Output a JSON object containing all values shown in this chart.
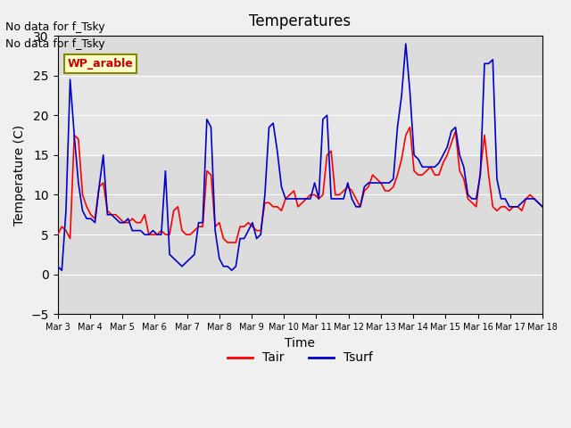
{
  "title": "Temperatures",
  "xlabel": "Time",
  "ylabel": "Temperature (C)",
  "ylim": [
    -5,
    30
  ],
  "background_color": "#e8e8e8",
  "plot_bg_color": "#dcdcdc",
  "annotation_text1": "No data for f_Tsky",
  "annotation_text2": "No data for f_Tsky",
  "wp_label": "WP_arable",
  "legend_labels": [
    "Tair",
    "Tsurf"
  ],
  "legend_colors": [
    "#ff0000",
    "#0000cc"
  ],
  "xtick_labels": [
    "Mar 3",
    "Mar 4",
    "Mar 5",
    "Mar 6",
    "Mar 7",
    "Mar 8",
    "Mar 9",
    "Mar 10",
    "Mar 11",
    "Mar 12",
    "Mar 13",
    "Mar 14",
    "Mar 15",
    "Mar 16",
    "Mar 17",
    "Mar 18"
  ],
  "tair": [
    5.0,
    6.0,
    5.5,
    4.5,
    17.5,
    17.0,
    10.0,
    8.5,
    7.5,
    7.0,
    11.0,
    11.5,
    8.0,
    7.5,
    7.5,
    7.0,
    6.5,
    6.5,
    7.0,
    6.5,
    6.5,
    7.5,
    5.0,
    5.0,
    5.0,
    5.5,
    5.0,
    5.0,
    8.0,
    8.5,
    5.5,
    5.0,
    5.0,
    5.5,
    6.0,
    6.0,
    13.0,
    12.5,
    6.0,
    6.5,
    4.5,
    4.0,
    4.0,
    4.0,
    6.0,
    6.0,
    6.5,
    6.0,
    5.5,
    5.5,
    9.0,
    9.0,
    8.5,
    8.5,
    8.0,
    9.5,
    10.0,
    10.5,
    8.5,
    9.0,
    9.5,
    10.0,
    10.0,
    9.5,
    10.0,
    15.0,
    15.5,
    10.0,
    10.0,
    10.5,
    11.0,
    10.5,
    9.5,
    8.5,
    10.5,
    11.0,
    12.5,
    12.0,
    11.5,
    10.5,
    10.5,
    11.0,
    12.5,
    14.5,
    17.5,
    18.5,
    13.0,
    12.5,
    12.5,
    13.0,
    13.5,
    12.5,
    12.5,
    14.0,
    15.0,
    16.5,
    18.0,
    13.0,
    12.0,
    9.5,
    9.0,
    8.5,
    13.0,
    17.5,
    12.5,
    8.5,
    8.0,
    8.5,
    8.5,
    8.0,
    8.5,
    8.5,
    8.0,
    9.5,
    10.0,
    9.5,
    9.0,
    8.5
  ],
  "tsurf": [
    1.0,
    0.5,
    8.0,
    24.5,
    17.5,
    11.5,
    8.0,
    7.0,
    7.0,
    6.5,
    11.0,
    15.0,
    7.5,
    7.5,
    7.0,
    6.5,
    6.5,
    7.0,
    5.5,
    5.5,
    5.5,
    5.0,
    5.0,
    5.5,
    5.0,
    5.0,
    13.0,
    2.5,
    2.0,
    1.5,
    1.0,
    1.5,
    2.0,
    2.5,
    6.5,
    6.5,
    19.5,
    18.5,
    5.5,
    2.0,
    1.0,
    1.0,
    0.5,
    1.0,
    4.5,
    4.5,
    5.5,
    6.5,
    4.5,
    5.0,
    10.0,
    18.5,
    19.0,
    15.5,
    11.0,
    9.5,
    9.5,
    9.5,
    9.5,
    9.5,
    9.5,
    9.5,
    11.5,
    9.5,
    19.5,
    20.0,
    9.5,
    9.5,
    9.5,
    9.5,
    11.5,
    9.5,
    8.5,
    8.5,
    11.0,
    11.5,
    11.5,
    11.5,
    11.5,
    11.5,
    11.5,
    12.0,
    18.5,
    22.5,
    29.0,
    23.0,
    15.0,
    14.5,
    13.5,
    13.5,
    13.5,
    13.5,
    14.0,
    15.0,
    16.0,
    18.0,
    18.5,
    15.0,
    13.5,
    10.0,
    9.5,
    9.5,
    12.5,
    26.5,
    26.5,
    27.0,
    12.0,
    9.5,
    9.5,
    8.5,
    8.5,
    8.5,
    9.0,
    9.5,
    9.5,
    9.5,
    9.0,
    8.5
  ]
}
